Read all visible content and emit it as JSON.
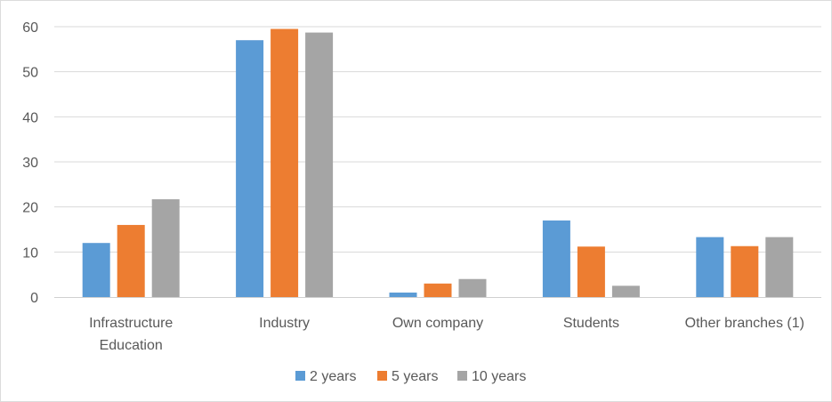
{
  "chart_data": {
    "type": "bar",
    "categories": [
      [
        "Infrastructure",
        "Education"
      ],
      [
        "Industry"
      ],
      [
        "Own company"
      ],
      [
        "Students"
      ],
      [
        "Other branches (1)"
      ]
    ],
    "series": [
      {
        "name": "2 years",
        "color": "#5b9bd5",
        "values": [
          12,
          57,
          1,
          17,
          13.3
        ]
      },
      {
        "name": "5 years",
        "color": "#ed7d31",
        "values": [
          16,
          59.5,
          3,
          11.2,
          11.3
        ]
      },
      {
        "name": "10 years",
        "color": "#a5a5a5",
        "values": [
          21.7,
          58.7,
          4,
          2.5,
          13.3
        ]
      }
    ],
    "ylim": [
      0,
      60
    ],
    "yticks": [
      0,
      10,
      20,
      30,
      40,
      50,
      60
    ],
    "grid": true,
    "legend_position": "bottom-center",
    "title": "",
    "xlabel": "",
    "ylabel": ""
  }
}
